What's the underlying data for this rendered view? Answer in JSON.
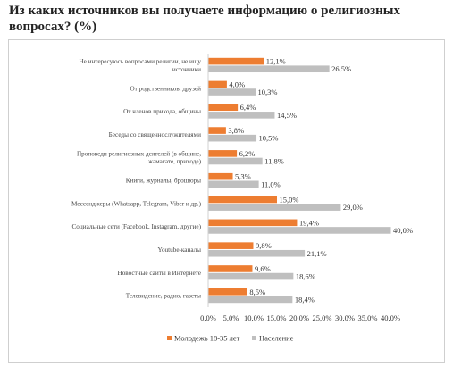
{
  "heading": {
    "line1": "Из каких источников вы получаете информацию о религиозных",
    "line2": "вопросах? (%)"
  },
  "chart_data": {
    "type": "bar",
    "orientation": "horizontal",
    "categories": [
      [
        "Не интересуюсь вопросами религии, не ищу",
        "источники"
      ],
      [
        "От родственников, друзей"
      ],
      [
        "От членов прихода, общины"
      ],
      [
        "Беседы со священнослужителями"
      ],
      [
        "Проповеди религиозных деятелей (в общине,",
        "жамагате, приходе)"
      ],
      [
        "Книги, журналы, брошюры"
      ],
      [
        "Мессенджеры (Whatsapp, Telegram, Viber и др.)"
      ],
      [
        "Социальные сети (Facebook, Instagram, другие)"
      ],
      [
        "Youtube-каналы"
      ],
      [
        "Новостные сайты в Интернете"
      ],
      [
        "Телевидение, радио, газеты"
      ]
    ],
    "series": [
      {
        "name": "Молодежь 18-35 лет",
        "color": "#ed7d31",
        "values": [
          12.1,
          4.0,
          6.4,
          3.8,
          6.2,
          5.3,
          15.0,
          19.4,
          9.8,
          9.6,
          8.5
        ],
        "labels": [
          "12,1%",
          "4,0%",
          "6,4%",
          "3,8%",
          "6,2%",
          "5,3%",
          "15,0%",
          "19,4%",
          "9,8%",
          "9,6%",
          "8,5%"
        ]
      },
      {
        "name": "Население",
        "color": "#bfbfbf",
        "values": [
          26.5,
          10.3,
          14.5,
          10.5,
          11.8,
          11.0,
          29.0,
          40.0,
          21.1,
          18.6,
          18.4
        ],
        "labels": [
          "26,5%",
          "10,3%",
          "14,5%",
          "10,5%",
          "11,8%",
          "11,0%",
          "29,0%",
          "40,0%",
          "21,1%",
          "18,6%",
          "18,4%"
        ]
      }
    ],
    "xlim": [
      0,
      40
    ],
    "xticks": [
      "0,0%",
      "5,0%",
      "10,0%",
      "15,0%",
      "20,0%",
      "25,0%",
      "30,0%",
      "35,0%",
      "40,0%"
    ],
    "legend_position": "bottom",
    "grid": false
  }
}
